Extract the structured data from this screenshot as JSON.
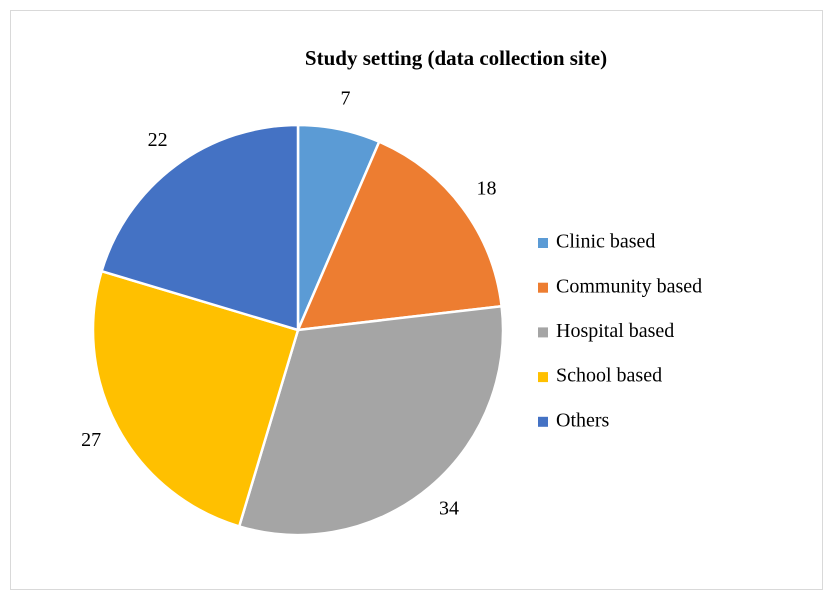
{
  "chart_data": {
    "type": "pie",
    "title": "Study setting (data collection site)",
    "categories": [
      "Clinic based",
      "Community based",
      "Hospital based",
      "School based",
      "Others"
    ],
    "values": [
      7,
      18,
      34,
      27,
      22
    ],
    "colors": [
      "#5b9bd5",
      "#ed7d31",
      "#a5a5a5",
      "#ffc000",
      "#4472c4"
    ],
    "legend": "right"
  }
}
